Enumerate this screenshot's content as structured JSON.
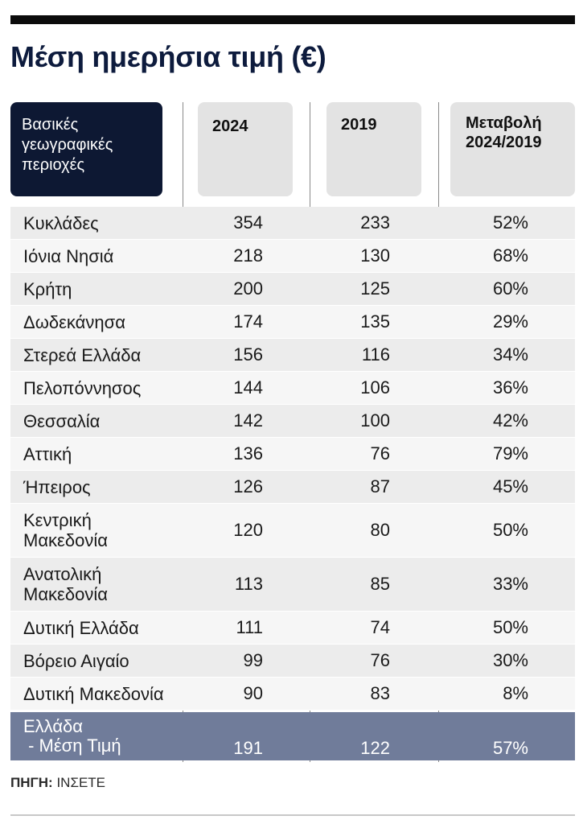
{
  "title": "Μέση ημερήσια τιμή (€)",
  "header": {
    "region_lines": [
      "Βασικές",
      "γεωγραφικές",
      "περιοχές"
    ],
    "col_2024": "2024",
    "col_2019": "2019",
    "change_lines": [
      "Μεταβολή",
      "2024/2019"
    ]
  },
  "rows": [
    {
      "region": [
        "Κυκλάδες"
      ],
      "v2024": "354",
      "v2019": "233",
      "change": "52%"
    },
    {
      "region": [
        "Ιόνια Νησιά"
      ],
      "v2024": "218",
      "v2019": "130",
      "change": "68%"
    },
    {
      "region": [
        "Κρήτη"
      ],
      "v2024": "200",
      "v2019": "125",
      "change": "60%"
    },
    {
      "region": [
        "Δωδεκάνησα"
      ],
      "v2024": "174",
      "v2019": "135",
      "change": "29%"
    },
    {
      "region": [
        "Στερεά Ελλάδα"
      ],
      "v2024": "156",
      "v2019": "116",
      "change": "34%"
    },
    {
      "region": [
        "Πελοπόννησος"
      ],
      "v2024": "144",
      "v2019": "106",
      "change": "36%"
    },
    {
      "region": [
        "Θεσσαλία"
      ],
      "v2024": "142",
      "v2019": "100",
      "change": "42%"
    },
    {
      "region": [
        "Αττική"
      ],
      "v2024": "136",
      "v2019": "76",
      "change": "79%"
    },
    {
      "region": [
        "Ήπειρος"
      ],
      "v2024": "126",
      "v2019": "87",
      "change": "45%"
    },
    {
      "region": [
        "Κεντρική",
        "Μακεδονία"
      ],
      "v2024": "120",
      "v2019": "80",
      "change": "50%"
    },
    {
      "region": [
        "Ανατολική",
        "Μακεδονία"
      ],
      "v2024": "113",
      "v2019": "85",
      "change": "33%"
    },
    {
      "region": [
        "Δυτική Ελλάδα"
      ],
      "v2024": "111",
      "v2019": "74",
      "change": "50%"
    },
    {
      "region": [
        "Βόρειο Αιγαίο"
      ],
      "v2024": "99",
      "v2019": "76",
      "change": "30%"
    },
    {
      "region": [
        "Δυτική Μακεδονία"
      ],
      "v2024": "90",
      "v2019": "83",
      "change": "8%"
    }
  ],
  "total": {
    "region": [
      "Ελλάδα",
      " - Μέση Τιμή"
    ],
    "v2024": "191",
    "v2019": "122",
    "change": "57%"
  },
  "source": {
    "label": "ΠΗΓΗ:",
    "value": "ΙΝΣΕΤΕ"
  },
  "colors": {
    "header_dark": "#0d1833",
    "total_row": "#707c9a",
    "title": "#0d1b3d"
  }
}
